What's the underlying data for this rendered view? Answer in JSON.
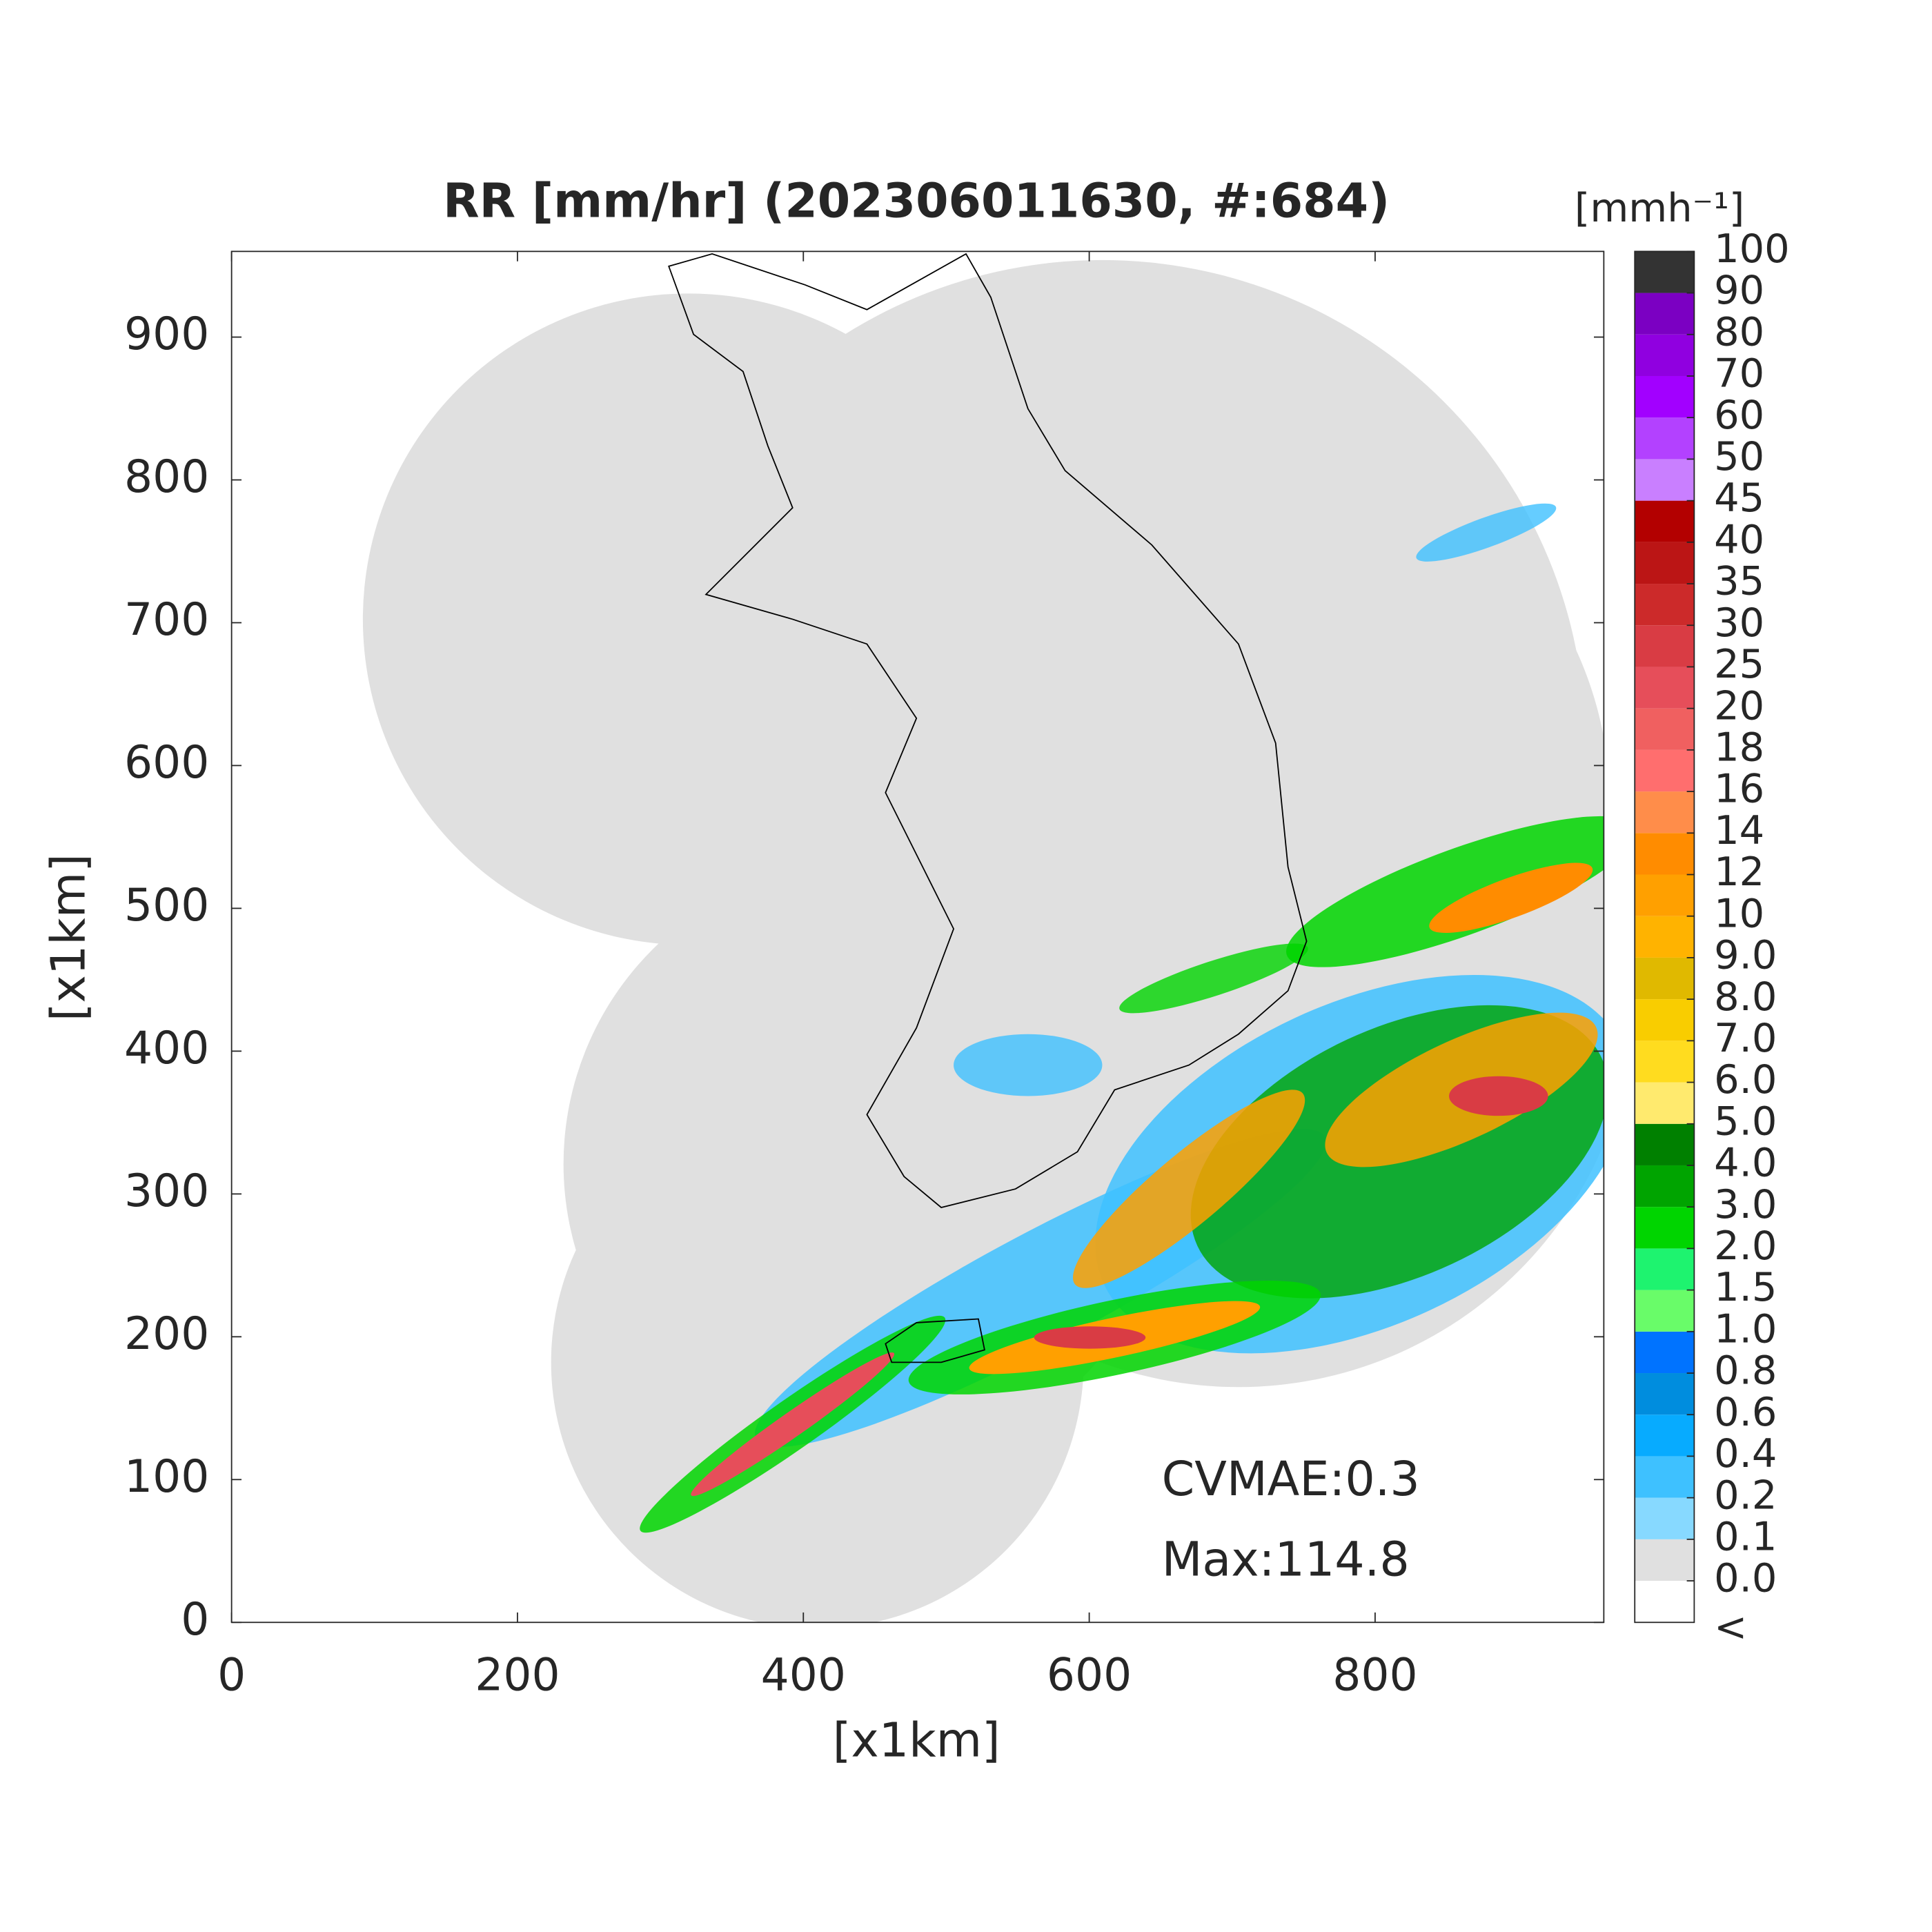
{
  "chart_data": {
    "type": "map",
    "title": "RR [mm/hr] (202306011630, #:684)",
    "xlabel": "[x1km]",
    "ylabel": "[x1km]",
    "xlim": [
      0,
      960
    ],
    "ylim": [
      0,
      960
    ],
    "xticks": [
      0,
      200,
      400,
      600,
      800
    ],
    "yticks": [
      0,
      100,
      200,
      300,
      400,
      500,
      600,
      700,
      800,
      900
    ],
    "annotations": [
      "CVMAE:0.3",
      "Max:114.8"
    ],
    "colorbar": {
      "title": "[mmh⁻¹]",
      "below_label": "<",
      "levels": [
        {
          "value": 0,
          "label": "0.0"
        },
        0.1,
        0.2,
        0.4,
        0.6,
        0.8,
        {
          "value": 1,
          "label": "1.0"
        },
        1.5,
        {
          "value": 2,
          "label": "2.0"
        },
        {
          "value": 3,
          "label": "3.0"
        },
        {
          "value": 4,
          "label": "4.0"
        },
        {
          "value": 5,
          "label": "5.0"
        },
        {
          "value": 6,
          "label": "6.0"
        },
        {
          "value": 7,
          "label": "7.0"
        },
        {
          "value": 8,
          "label": "8.0"
        },
        {
          "value": 9,
          "label": "9.0"
        },
        10,
        12,
        14,
        16,
        18,
        20,
        25,
        30,
        35,
        40,
        45,
        50,
        60,
        70,
        80,
        90,
        100
      ],
      "colors": [
        "#ffffff",
        "#e0e0e0",
        "#87d9ff",
        "#3ec1ff",
        "#07abff",
        "#008dde",
        "#0073ff",
        "#69fc69",
        "#1ef36f",
        "#00d500",
        "#00a400",
        "#008000",
        "#ffea6e",
        "#ffdc1f",
        "#f9cd00",
        "#e0b900",
        "#ffb300",
        "#ffa000",
        "#ff8c00",
        "#ff8d4a",
        "#ff6e6e",
        "#f06060",
        "#e64e5a",
        "#d93c44",
        "#cc2a2a",
        "#bb1515",
        "#b30000",
        "#c97fff",
        "#b341ff",
        "#a200ff",
        "#9000e0",
        "#7b00c2",
        "#333333"
      ]
    }
  }
}
